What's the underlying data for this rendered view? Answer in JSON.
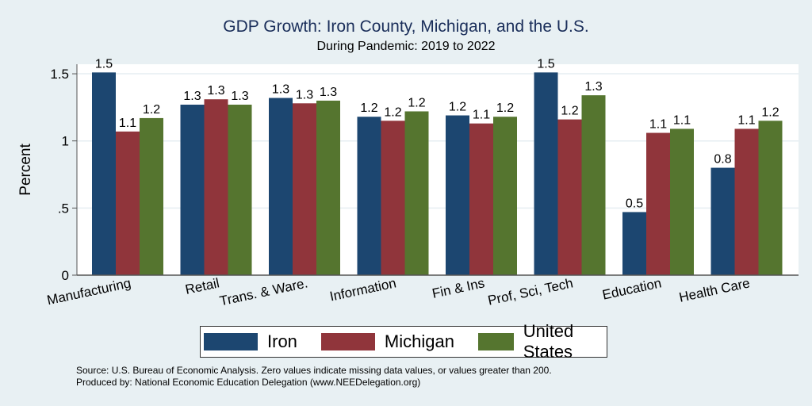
{
  "chart_data": {
    "type": "bar",
    "title": "GDP Growth: Iron County, Michigan, and the U.S.",
    "subtitle": "During Pandemic: 2019 to 2022",
    "xlabel": "",
    "ylabel": "Percent",
    "ylim": [
      0,
      1.6
    ],
    "yticks": [
      0,
      0.5,
      1,
      1.5
    ],
    "ytick_labels": [
      "0",
      ".5",
      "1",
      "1.5"
    ],
    "grid": true,
    "legend_position": "bottom",
    "categories": [
      "Manufacturing",
      "Retail",
      "Trans. & Ware.",
      "Information",
      "Fin & Ins",
      "Prof, Sci, Tech",
      "Education",
      "Health Care"
    ],
    "series": [
      {
        "name": "Iron",
        "color": "#1c4670",
        "values": [
          1.51,
          1.27,
          1.32,
          1.18,
          1.19,
          1.51,
          0.47,
          0.8
        ],
        "labels": [
          "1.5",
          "1.3",
          "1.3",
          "1.2",
          "1.2",
          "1.5",
          "0.5",
          "0.8"
        ]
      },
      {
        "name": "Michigan",
        "color": "#90353b",
        "values": [
          1.07,
          1.31,
          1.28,
          1.15,
          1.13,
          1.16,
          1.06,
          1.09
        ],
        "labels": [
          "1.1",
          "1.3",
          "1.3",
          "1.2",
          "1.1",
          "1.2",
          "1.1",
          "1.1"
        ]
      },
      {
        "name": "United States",
        "color": "#55752f",
        "values": [
          1.17,
          1.27,
          1.3,
          1.22,
          1.18,
          1.34,
          1.09,
          1.15
        ],
        "labels": [
          "1.2",
          "1.3",
          "1.3",
          "1.2",
          "1.2",
          "1.3",
          "1.1",
          "1.2"
        ]
      }
    ]
  },
  "footer": {
    "source": "Source: U.S. Bureau of Economic Analysis. Zero values indicate missing data values, or values greater than 200.",
    "produced_by": "Produced by: National Economic Education Delegation (www.NEEDelegation.org)"
  }
}
